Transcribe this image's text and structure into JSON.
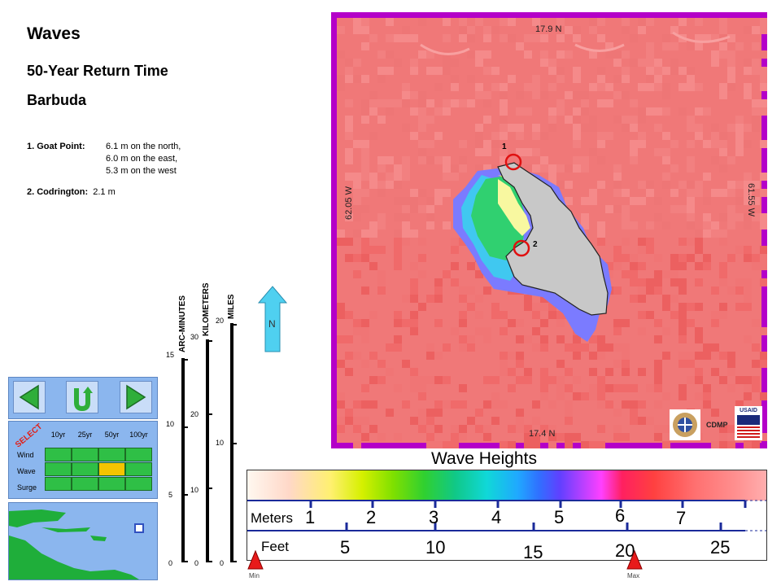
{
  "header": {
    "title": "Waves",
    "subtitle": "50-Year Return Time",
    "place": "Barbuda"
  },
  "notes": [
    {
      "label": "1. Goat Point:",
      "lines": [
        "6.1 m on the north,",
        "6.0 m on the east,",
        "5.3 m on the west"
      ]
    },
    {
      "label": "2. Codrington:",
      "lines": [
        "2.1 m"
      ]
    }
  ],
  "scales": {
    "arc_minutes": {
      "label": "ARC-MINUTES",
      "ticks": [
        "15",
        "10",
        "5",
        "0"
      ]
    },
    "kilometers": {
      "label": "KILOMETERS",
      "ticks": [
        "30",
        "20",
        "10",
        "0"
      ]
    },
    "miles": {
      "label": "MILES",
      "ticks": [
        "20",
        "10",
        "0"
      ]
    }
  },
  "north_arrow": {
    "label": "N"
  },
  "select_grid": {
    "select_label": "SELECT",
    "columns": [
      "10yr",
      "25yr",
      "50yr",
      "100yr"
    ],
    "rows": [
      "Wind",
      "Wave",
      "Surge"
    ],
    "selected": {
      "row": "Wave",
      "column": "50yr"
    },
    "highlight_color": "#f5c400",
    "cell_color": "#2fbf46"
  },
  "map": {
    "top_label": "17.9 N",
    "bottom_label": "17.4 N",
    "left_label": "62.05 W",
    "right_label": "61.55 W",
    "points": [
      {
        "id": "1",
        "name": "Goat Point"
      },
      {
        "id": "2",
        "name": "Codrington"
      }
    ],
    "credits": [
      "CDMP",
      "USAID"
    ],
    "frame_color": "#b400c8",
    "sea_color": "#f07878"
  },
  "legend": {
    "title": "Wave Heights",
    "meters_label": "Meters",
    "meters": [
      "1",
      "2",
      "3",
      "4",
      "5",
      "6",
      "7"
    ],
    "feet_label": "Feet",
    "feet": [
      "5",
      "10",
      "15",
      "20",
      "25"
    ],
    "min_label": "Min",
    "max_label": "Max"
  }
}
